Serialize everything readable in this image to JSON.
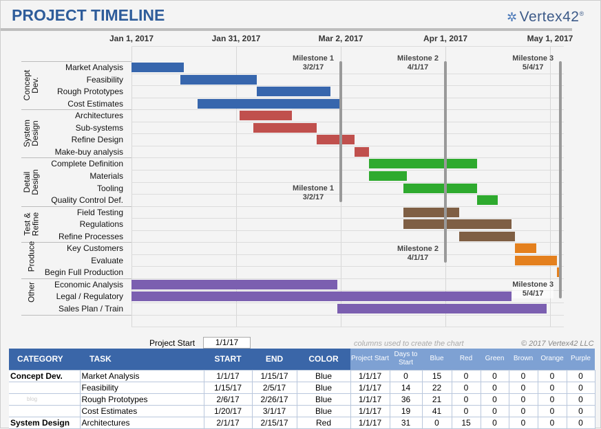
{
  "title": "PROJECT TIMELINE",
  "logo": "vertex42",
  "chart_data": {
    "type": "gantt",
    "title": "PROJECT TIMELINE",
    "x_ticks": [
      "Jan 1, 2017",
      "Jan 31, 2017",
      "Mar 2, 2017",
      "Apr 1, 2017",
      "May 1, 2017"
    ],
    "x_unit": "days since project start 1/1/17",
    "xlim": [
      0,
      124
    ],
    "colors": {
      "Blue": "#3766ad",
      "Red": "#c0504d",
      "Green": "#2eaa2e",
      "Brown": "#7f5f44",
      "Orange": "#e4801e",
      "Purple": "#7b5fb0"
    },
    "categories": [
      {
        "name": "Concept\nDev.",
        "tasks": [
          {
            "task": "Market Analysis",
            "start": 0,
            "days": 15,
            "color": "Blue"
          },
          {
            "task": "Feasibility",
            "start": 14,
            "days": 22,
            "color": "Blue"
          },
          {
            "task": "Rough Prototypes",
            "start": 36,
            "days": 21,
            "color": "Blue"
          },
          {
            "task": "Cost Estimates",
            "start": 19,
            "days": 41,
            "color": "Blue"
          }
        ]
      },
      {
        "name": "System\nDesign",
        "tasks": [
          {
            "task": "Architectures",
            "start": 31,
            "days": 15,
            "color": "Red"
          },
          {
            "task": "Sub-systems",
            "start": 35,
            "days": 18,
            "color": "Red"
          },
          {
            "task": "Refine Design",
            "start": 53,
            "days": 11,
            "color": "Red"
          },
          {
            "task": "Make-buy analysis",
            "start": 64,
            "days": 4,
            "color": "Red"
          }
        ]
      },
      {
        "name": "Detail\nDesign",
        "tasks": [
          {
            "task": "Complete Definition",
            "start": 68,
            "days": 31,
            "color": "Green"
          },
          {
            "task": "Materials",
            "start": 68,
            "days": 11,
            "color": "Green"
          },
          {
            "task": "Tooling",
            "start": 78,
            "days": 21,
            "color": "Green"
          },
          {
            "task": "Quality Control Def.",
            "start": 99,
            "days": 6,
            "color": "Green"
          }
        ]
      },
      {
        "name": "Test &\nRefine",
        "tasks": [
          {
            "task": "Field Testing",
            "start": 78,
            "days": 16,
            "color": "Brown"
          },
          {
            "task": "Regulations",
            "start": 78,
            "days": 31,
            "color": "Brown"
          },
          {
            "task": "Refine Processes",
            "start": 94,
            "days": 16,
            "color": "Brown"
          }
        ]
      },
      {
        "name": "Produce",
        "tasks": [
          {
            "task": "Key Customers",
            "start": 110,
            "days": 6,
            "color": "Orange"
          },
          {
            "task": "Evaluate",
            "start": 110,
            "days": 12,
            "color": "Orange"
          },
          {
            "task": "Begin Full Production",
            "start": 122,
            "days": 1,
            "color": "Orange"
          }
        ]
      },
      {
        "name": "Other",
        "tasks": [
          {
            "task": "Economic Analysis",
            "start": 0,
            "days": 59,
            "color": "Purple"
          },
          {
            "task": "Legal / Regulatory",
            "start": 0,
            "days": 109,
            "color": "Purple"
          },
          {
            "task": "Sales Plan / Train",
            "start": 59,
            "days": 60,
            "color": "Purple"
          }
        ]
      }
    ],
    "milestones": [
      {
        "name": "Milestone 1",
        "date": "3/2/17",
        "day": 60,
        "end_row": 11
      },
      {
        "name": "Milestone 2",
        "date": "4/1/17",
        "day": 90,
        "end_row": 16
      },
      {
        "name": "Milestone 3",
        "date": "5/4/17",
        "day": 123,
        "end_row": 19
      }
    ]
  },
  "project_start": {
    "label": "Project Start",
    "value": "1/1/17"
  },
  "note": "columns used to create the chart",
  "copyright": "© 2017 Vertex42 LLC",
  "table": {
    "headers": [
      "CATEGORY",
      "TASK",
      "START",
      "END",
      "COLOR",
      "Project Start",
      "Days to Start",
      "Blue",
      "Red",
      "Green",
      "Brown",
      "Orange",
      "Purple"
    ],
    "rows": [
      [
        "Concept Dev.",
        "Market Analysis",
        "1/1/17",
        "1/15/17",
        "Blue",
        "1/1/17",
        "0",
        "15",
        "0",
        "0",
        "0",
        "0",
        "0"
      ],
      [
        "",
        "Feasibility",
        "1/15/17",
        "2/5/17",
        "Blue",
        "1/1/17",
        "14",
        "22",
        "0",
        "0",
        "0",
        "0",
        "0"
      ],
      [
        "blog",
        "Rough Prototypes",
        "2/6/17",
        "2/26/17",
        "Blue",
        "1/1/17",
        "36",
        "21",
        "0",
        "0",
        "0",
        "0",
        "0"
      ],
      [
        "",
        "Cost Estimates",
        "1/20/17",
        "3/1/17",
        "Blue",
        "1/1/17",
        "19",
        "41",
        "0",
        "0",
        "0",
        "0",
        "0"
      ],
      [
        "System Design",
        "Architectures",
        "2/1/17",
        "2/15/17",
        "Red",
        "1/1/17",
        "31",
        "0",
        "15",
        "0",
        "0",
        "0",
        "0"
      ]
    ]
  }
}
